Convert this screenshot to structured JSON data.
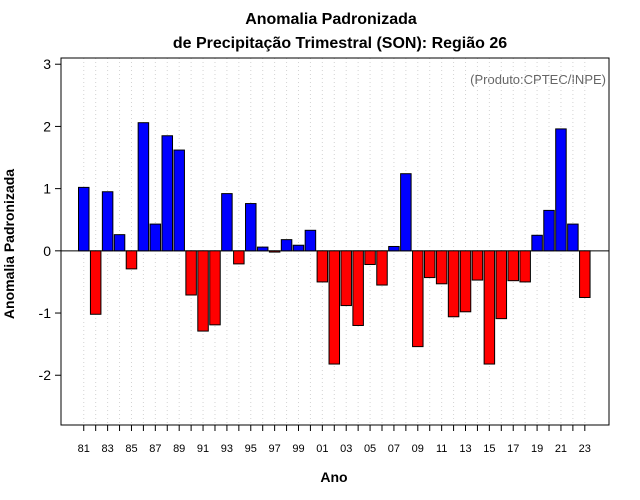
{
  "chart_data": {
    "type": "bar",
    "title": "Anomalia Padronizada",
    "subtitle": "de Precipitação Trimestral (SON): Região 26",
    "xlabel": "Ano",
    "ylabel": "Anomalia Padronizada",
    "annotation": "(Produto:CPTEC/INPE)",
    "ylim": [
      -2.8,
      3.1
    ],
    "yticks": [
      -2,
      -1,
      0,
      1,
      2,
      3
    ],
    "ytick_labels": [
      "-2",
      "-1",
      "0",
      "1",
      "2",
      "3"
    ],
    "grid": "vertical dotted",
    "colors": {
      "positive": "#0000ff",
      "negative": "#ff0000",
      "grid": "#d3d3d3",
      "axis": "#000000"
    },
    "categories": [
      "81",
      "82",
      "83",
      "84",
      "85",
      "86",
      "87",
      "88",
      "89",
      "90",
      "91",
      "92",
      "93",
      "94",
      "95",
      "96",
      "97",
      "98",
      "99",
      "00",
      "01",
      "02",
      "03",
      "04",
      "05",
      "06",
      "07",
      "08",
      "09",
      "10",
      "11",
      "12",
      "13",
      "14",
      "15",
      "16",
      "17",
      "18",
      "19",
      "20",
      "21",
      "22",
      "23"
    ],
    "values": [
      1.02,
      -1.02,
      0.95,
      0.26,
      -0.29,
      2.06,
      0.43,
      1.85,
      1.62,
      -0.71,
      -1.29,
      -1.19,
      0.92,
      -0.21,
      0.76,
      0.06,
      -0.02,
      0.18,
      0.09,
      0.33,
      -0.5,
      -1.82,
      -0.88,
      -1.2,
      -0.22,
      -0.55,
      0.07,
      1.24,
      -1.54,
      -0.43,
      -0.53,
      -1.06,
      -0.98,
      -0.47,
      -1.82,
      -1.09,
      -0.48,
      -0.5,
      0.25,
      0.65,
      1.96,
      0.43,
      -0.75
    ],
    "xtick_labels": [
      "81",
      "83",
      "85",
      "87",
      "89",
      "91",
      "93",
      "95",
      "97",
      "99",
      "01",
      "03",
      "05",
      "07",
      "09",
      "11",
      "13",
      "15",
      "17",
      "19",
      "21",
      "23"
    ]
  }
}
